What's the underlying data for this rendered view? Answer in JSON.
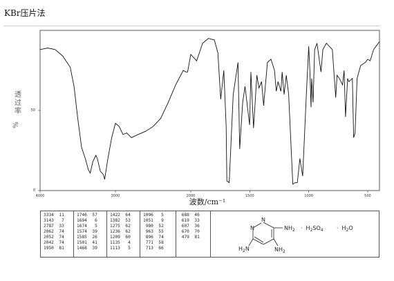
{
  "title": "KBr压片法",
  "chart_data": {
    "type": "line",
    "xlabel": "波数/cm⁻¹",
    "ylabel_chars": [
      "透",
      "过",
      "率"
    ],
    "ylabel_unit": "%",
    "xlim": [
      4000,
      400
    ],
    "ylim": [
      0,
      100
    ],
    "xticks": [
      4000,
      3000,
      2000,
      1500,
      1000,
      500
    ],
    "ytick_labels": [
      "50",
      "0"
    ],
    "series": [
      {
        "points": [
          [
            4000,
            88
          ],
          [
            3900,
            89
          ],
          [
            3800,
            88
          ],
          [
            3700,
            84
          ],
          [
            3600,
            77
          ],
          [
            3550,
            65
          ],
          [
            3500,
            45
          ],
          [
            3450,
            27
          ],
          [
            3400,
            20
          ],
          [
            3360,
            13
          ],
          [
            3334,
            11
          ],
          [
            3300,
            18
          ],
          [
            3260,
            22
          ],
          [
            3240,
            20
          ],
          [
            3200,
            12
          ],
          [
            3160,
            10
          ],
          [
            3143,
            7
          ],
          [
            3100,
            20
          ],
          [
            3050,
            33
          ],
          [
            3000,
            42
          ],
          [
            2950,
            40
          ],
          [
            2900,
            35
          ],
          [
            2850,
            36
          ],
          [
            2787,
            33
          ],
          [
            2700,
            35
          ],
          [
            2600,
            37
          ],
          [
            2500,
            40
          ],
          [
            2400,
            45
          ],
          [
            2300,
            55
          ],
          [
            2200,
            66
          ],
          [
            2100,
            75
          ],
          [
            2062,
            74
          ],
          [
            2052,
            74
          ],
          [
            2042,
            74
          ],
          [
            2000,
            85
          ],
          [
            1950,
            81
          ],
          [
            1900,
            92
          ],
          [
            1850,
            95
          ],
          [
            1800,
            94
          ],
          [
            1770,
            86
          ],
          [
            1746,
            57
          ],
          [
            1720,
            75
          ],
          [
            1700,
            40
          ],
          [
            1694,
            6
          ],
          [
            1674,
            5
          ],
          [
            1640,
            60
          ],
          [
            1600,
            80
          ],
          [
            1585,
            26
          ],
          [
            1574,
            39
          ],
          [
            1560,
            55
          ],
          [
            1540,
            65
          ],
          [
            1501,
            41
          ],
          [
            1490,
            74
          ],
          [
            1468,
            39
          ],
          [
            1440,
            72
          ],
          [
            1422,
            64
          ],
          [
            1400,
            68
          ],
          [
            1382,
            53
          ],
          [
            1350,
            80
          ],
          [
            1320,
            82
          ],
          [
            1290,
            75
          ],
          [
            1275,
            62
          ],
          [
            1260,
            68
          ],
          [
            1236,
            62
          ],
          [
            1225,
            74
          ],
          [
            1209,
            60
          ],
          [
            1190,
            72
          ],
          [
            1170,
            60
          ],
          [
            1135,
            4
          ],
          [
            1113,
            5
          ],
          [
            1096,
            5
          ],
          [
            1075,
            20
          ],
          [
            1051,
            9
          ],
          [
            1020,
            60
          ],
          [
            1000,
            90
          ],
          [
            990,
            75
          ],
          [
            980,
            52
          ],
          [
            975,
            70
          ],
          [
            963,
            55
          ],
          [
            950,
            88
          ],
          [
            930,
            92
          ],
          [
            896,
            74
          ],
          [
            880,
            88
          ],
          [
            850,
            92
          ],
          [
            800,
            88
          ],
          [
            771,
            58
          ],
          [
            760,
            72
          ],
          [
            740,
            70
          ],
          [
            713,
            66
          ],
          [
            700,
            75
          ],
          [
            688,
            46
          ],
          [
            670,
            70
          ],
          [
            660,
            68
          ],
          [
            630,
            70
          ],
          [
            619,
            33
          ],
          [
            607,
            36
          ],
          [
            590,
            70
          ],
          [
            560,
            78
          ],
          [
            520,
            80
          ],
          [
            500,
            82
          ],
          [
            479,
            81
          ],
          [
            450,
            88
          ],
          [
            420,
            91
          ],
          [
            400,
            93
          ]
        ]
      }
    ]
  },
  "peak_table": {
    "columns": [
      [
        "3334  11",
        "3143   7",
        "2787  33",
        "2062  74",
        "2052  74",
        "2042  74",
        "1950  81"
      ],
      [
        "1746  57",
        "1694   6",
        "1674   5",
        "1574  39",
        "1585  26",
        "1501  41",
        "1468  39"
      ],
      [
        "1422  64",
        "1382  53",
        "1275  62",
        "1236  62",
        "1209  60",
        "1135   4",
        "1113   5"
      ],
      [
        "1096   5",
        "1051   9",
        " 980  52",
        " 963  55",
        " 896  74",
        " 771  58",
        " 713  66"
      ],
      [
        " 688  46",
        " 619  33",
        " 607  36",
        " 670  70",
        " 479  81"
      ]
    ]
  },
  "structure": {
    "ring_n_top": "N",
    "ring_n_left": "N",
    "substituent_right": "NH",
    "substituent_right_sub": "2",
    "substituent_bottom_left": "H",
    "substituent_bottom_left_sub": "2",
    "substituent_bottom_left_n": "N",
    "substituent_bottom_right": "NH",
    "substituent_bottom_right_sub": "2",
    "salt_dot1": "·",
    "salt": "H",
    "salt_sub1": "2",
    "salt_mid": "SO",
    "salt_sub2": "4",
    "salt_dot2": "·",
    "water": "H",
    "water_sub": "2",
    "water_end": "O"
  }
}
